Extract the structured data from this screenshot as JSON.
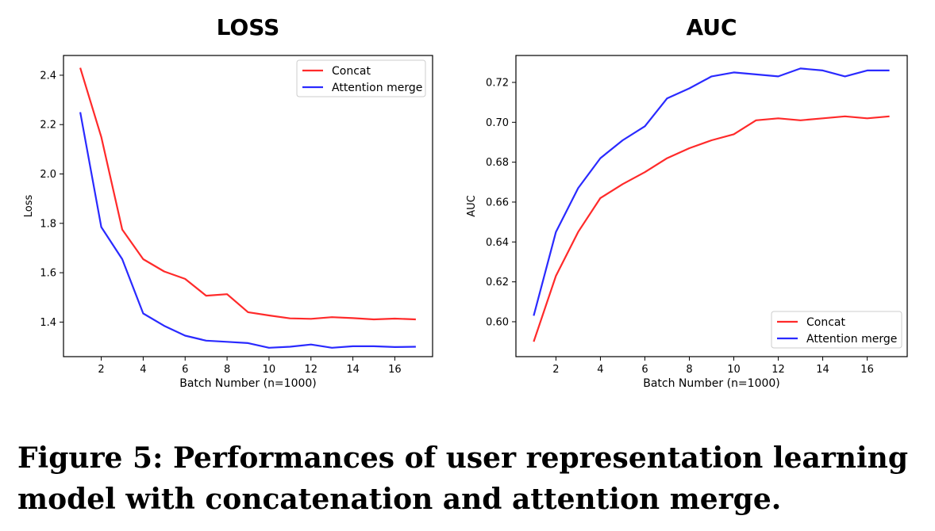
{
  "figure": {
    "caption": "Figure 5: Performances of user representation learning model with concatenation and attention merge."
  },
  "chart_data": [
    {
      "type": "line",
      "title": "LOSS",
      "xlabel": "Batch Number (n=1000)",
      "ylabel": "Loss",
      "xlim": [
        0.2,
        17.8
      ],
      "ylim": [
        1.26,
        2.48
      ],
      "x_ticks": [
        2,
        4,
        6,
        8,
        10,
        12,
        14,
        16
      ],
      "y_ticks": [
        1.4,
        1.6,
        1.8,
        2.0,
        2.2,
        2.4
      ],
      "legend": "top-right",
      "grid": false,
      "x": [
        1,
        2,
        3,
        4,
        5,
        6,
        7,
        8,
        9,
        10,
        11,
        12,
        13,
        14,
        15,
        16,
        17
      ],
      "series": [
        {
          "name": "Concat",
          "color": "#ff2a2a",
          "values": [
            2.43,
            2.15,
            1.775,
            1.655,
            1.605,
            1.575,
            1.507,
            1.513,
            1.44,
            1.427,
            1.415,
            1.413,
            1.42,
            1.416,
            1.411,
            1.414,
            1.411
          ]
        },
        {
          "name": "Attention merge",
          "color": "#2a2aff",
          "values": [
            2.25,
            1.785,
            1.655,
            1.435,
            1.385,
            1.345,
            1.325,
            1.32,
            1.315,
            1.296,
            1.3,
            1.309,
            1.296,
            1.302,
            1.302,
            1.299,
            1.3
          ]
        }
      ]
    },
    {
      "type": "line",
      "title": "AUC",
      "xlabel": "Batch Number (n=1000)",
      "ylabel": "AUC",
      "xlim": [
        0.2,
        17.8
      ],
      "ylim": [
        0.5825,
        0.7335
      ],
      "x_ticks": [
        2,
        4,
        6,
        8,
        10,
        12,
        14,
        16
      ],
      "y_ticks": [
        0.6,
        0.62,
        0.64,
        0.66,
        0.68,
        0.7,
        0.72
      ],
      "legend": "bottom-right",
      "grid": false,
      "x": [
        1,
        2,
        3,
        4,
        5,
        6,
        7,
        8,
        9,
        10,
        11,
        12,
        13,
        14,
        15,
        16,
        17
      ],
      "series": [
        {
          "name": "Concat",
          "color": "#ff2a2a",
          "values": [
            0.59,
            0.623,
            0.645,
            0.662,
            0.669,
            0.675,
            0.682,
            0.687,
            0.691,
            0.694,
            0.701,
            0.702,
            0.701,
            0.702,
            0.703,
            0.702,
            0.703
          ]
        },
        {
          "name": "Attention merge",
          "color": "#2a2aff",
          "values": [
            0.603,
            0.645,
            0.667,
            0.682,
            0.691,
            0.698,
            0.712,
            0.717,
            0.723,
            0.725,
            0.724,
            0.723,
            0.727,
            0.726,
            0.723,
            0.726,
            0.726
          ]
        }
      ]
    }
  ]
}
